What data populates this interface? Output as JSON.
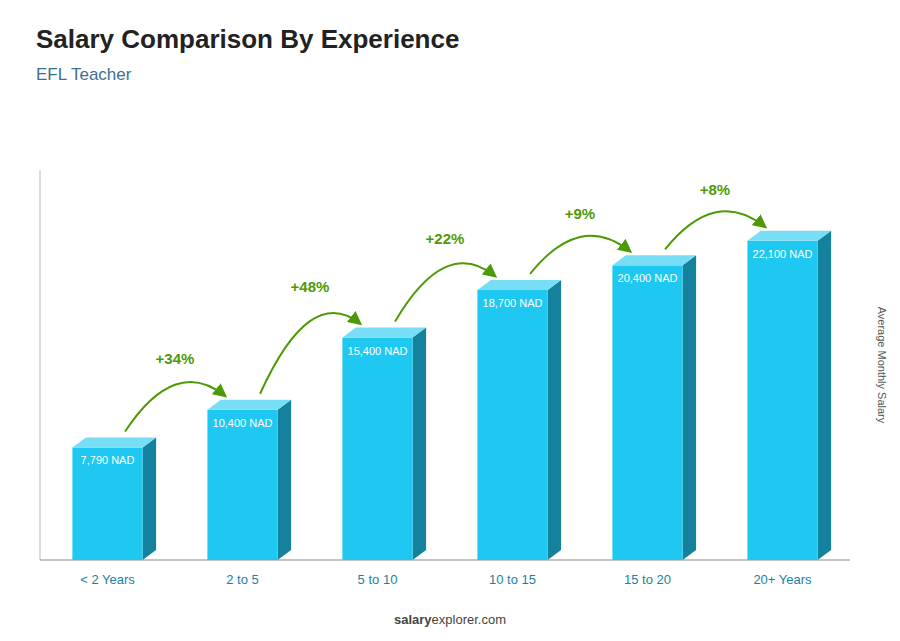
{
  "chart_data": {
    "type": "bar",
    "title": "Salary Comparison By Experience",
    "subtitle": "EFL Teacher",
    "categories": [
      "< 2 Years",
      "2 to 5",
      "5 to 10",
      "10 to 15",
      "15 to 20",
      "20+ Years"
    ],
    "values": [
      7790,
      10400,
      15400,
      18700,
      20400,
      22100
    ],
    "value_labels": [
      "7,790 NAD",
      "10,400 NAD",
      "15,400 NAD",
      "18,700 NAD",
      "20,400 NAD",
      "22,100 NAD"
    ],
    "data_labels": true,
    "annotations": [
      "+34%",
      "+48%",
      "+22%",
      "+9%",
      "+8%"
    ],
    "ylabel": "Average Monthly Salary",
    "footer": [
      "salary",
      "explorer.com"
    ],
    "color": "#1ec8f0",
    "ylim": [
      0,
      27000
    ],
    "tick_labels": "x"
  }
}
